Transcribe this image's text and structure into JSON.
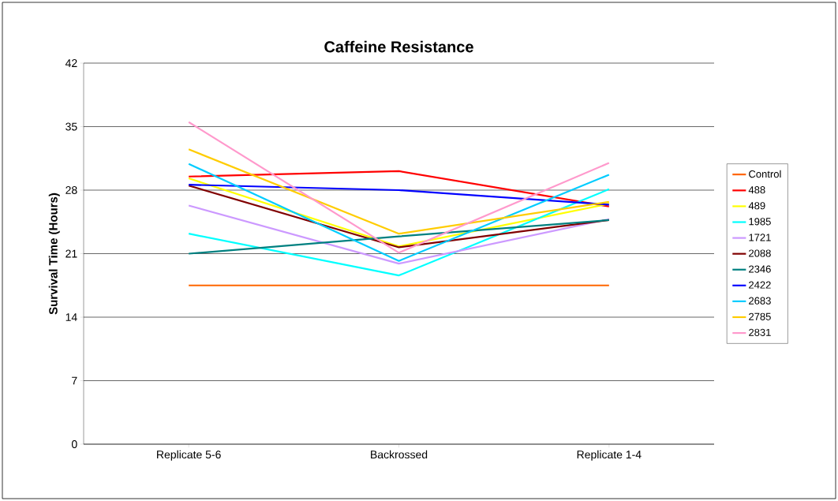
{
  "chart_data": {
    "type": "line",
    "title": "Caffeine Resistance",
    "ylabel": "Survival Time (Hours)",
    "categories": [
      "Replicate 5-6",
      "Backrossed",
      "Replicate 1-4"
    ],
    "ylim": [
      0,
      42
    ],
    "yticks": [
      0,
      7,
      14,
      21,
      28,
      35,
      42
    ],
    "grid": "y",
    "legend": "right",
    "marker": "none",
    "series": [
      {
        "name": "Control",
        "color": "#ff6600",
        "values": [
          17.5,
          17.5,
          17.5
        ]
      },
      {
        "name": "488",
        "color": "#ff0000",
        "values": [
          29.5,
          30.1,
          26.2
        ]
      },
      {
        "name": "489",
        "color": "#ffff00",
        "values": [
          29.3,
          21.8,
          26.5
        ]
      },
      {
        "name": "1985",
        "color": "#00ffff",
        "values": [
          23.2,
          18.6,
          28.1
        ]
      },
      {
        "name": "1721",
        "color": "#cc99ff",
        "values": [
          26.3,
          19.9,
          24.8
        ]
      },
      {
        "name": "2088",
        "color": "#800000",
        "values": [
          28.5,
          21.7,
          24.7
        ]
      },
      {
        "name": "2346",
        "color": "#008080",
        "values": [
          21.0,
          22.9,
          24.7
        ]
      },
      {
        "name": "2422",
        "color": "#0000ff",
        "values": [
          28.6,
          28.0,
          26.4
        ]
      },
      {
        "name": "2683",
        "color": "#00ccff",
        "values": [
          30.9,
          20.2,
          29.7
        ]
      },
      {
        "name": "2785",
        "color": "#ffcc00",
        "values": [
          32.5,
          23.2,
          26.7
        ]
      },
      {
        "name": "2831",
        "color": "#ff99cc",
        "values": [
          35.5,
          21.1,
          31.0
        ]
      }
    ]
  }
}
